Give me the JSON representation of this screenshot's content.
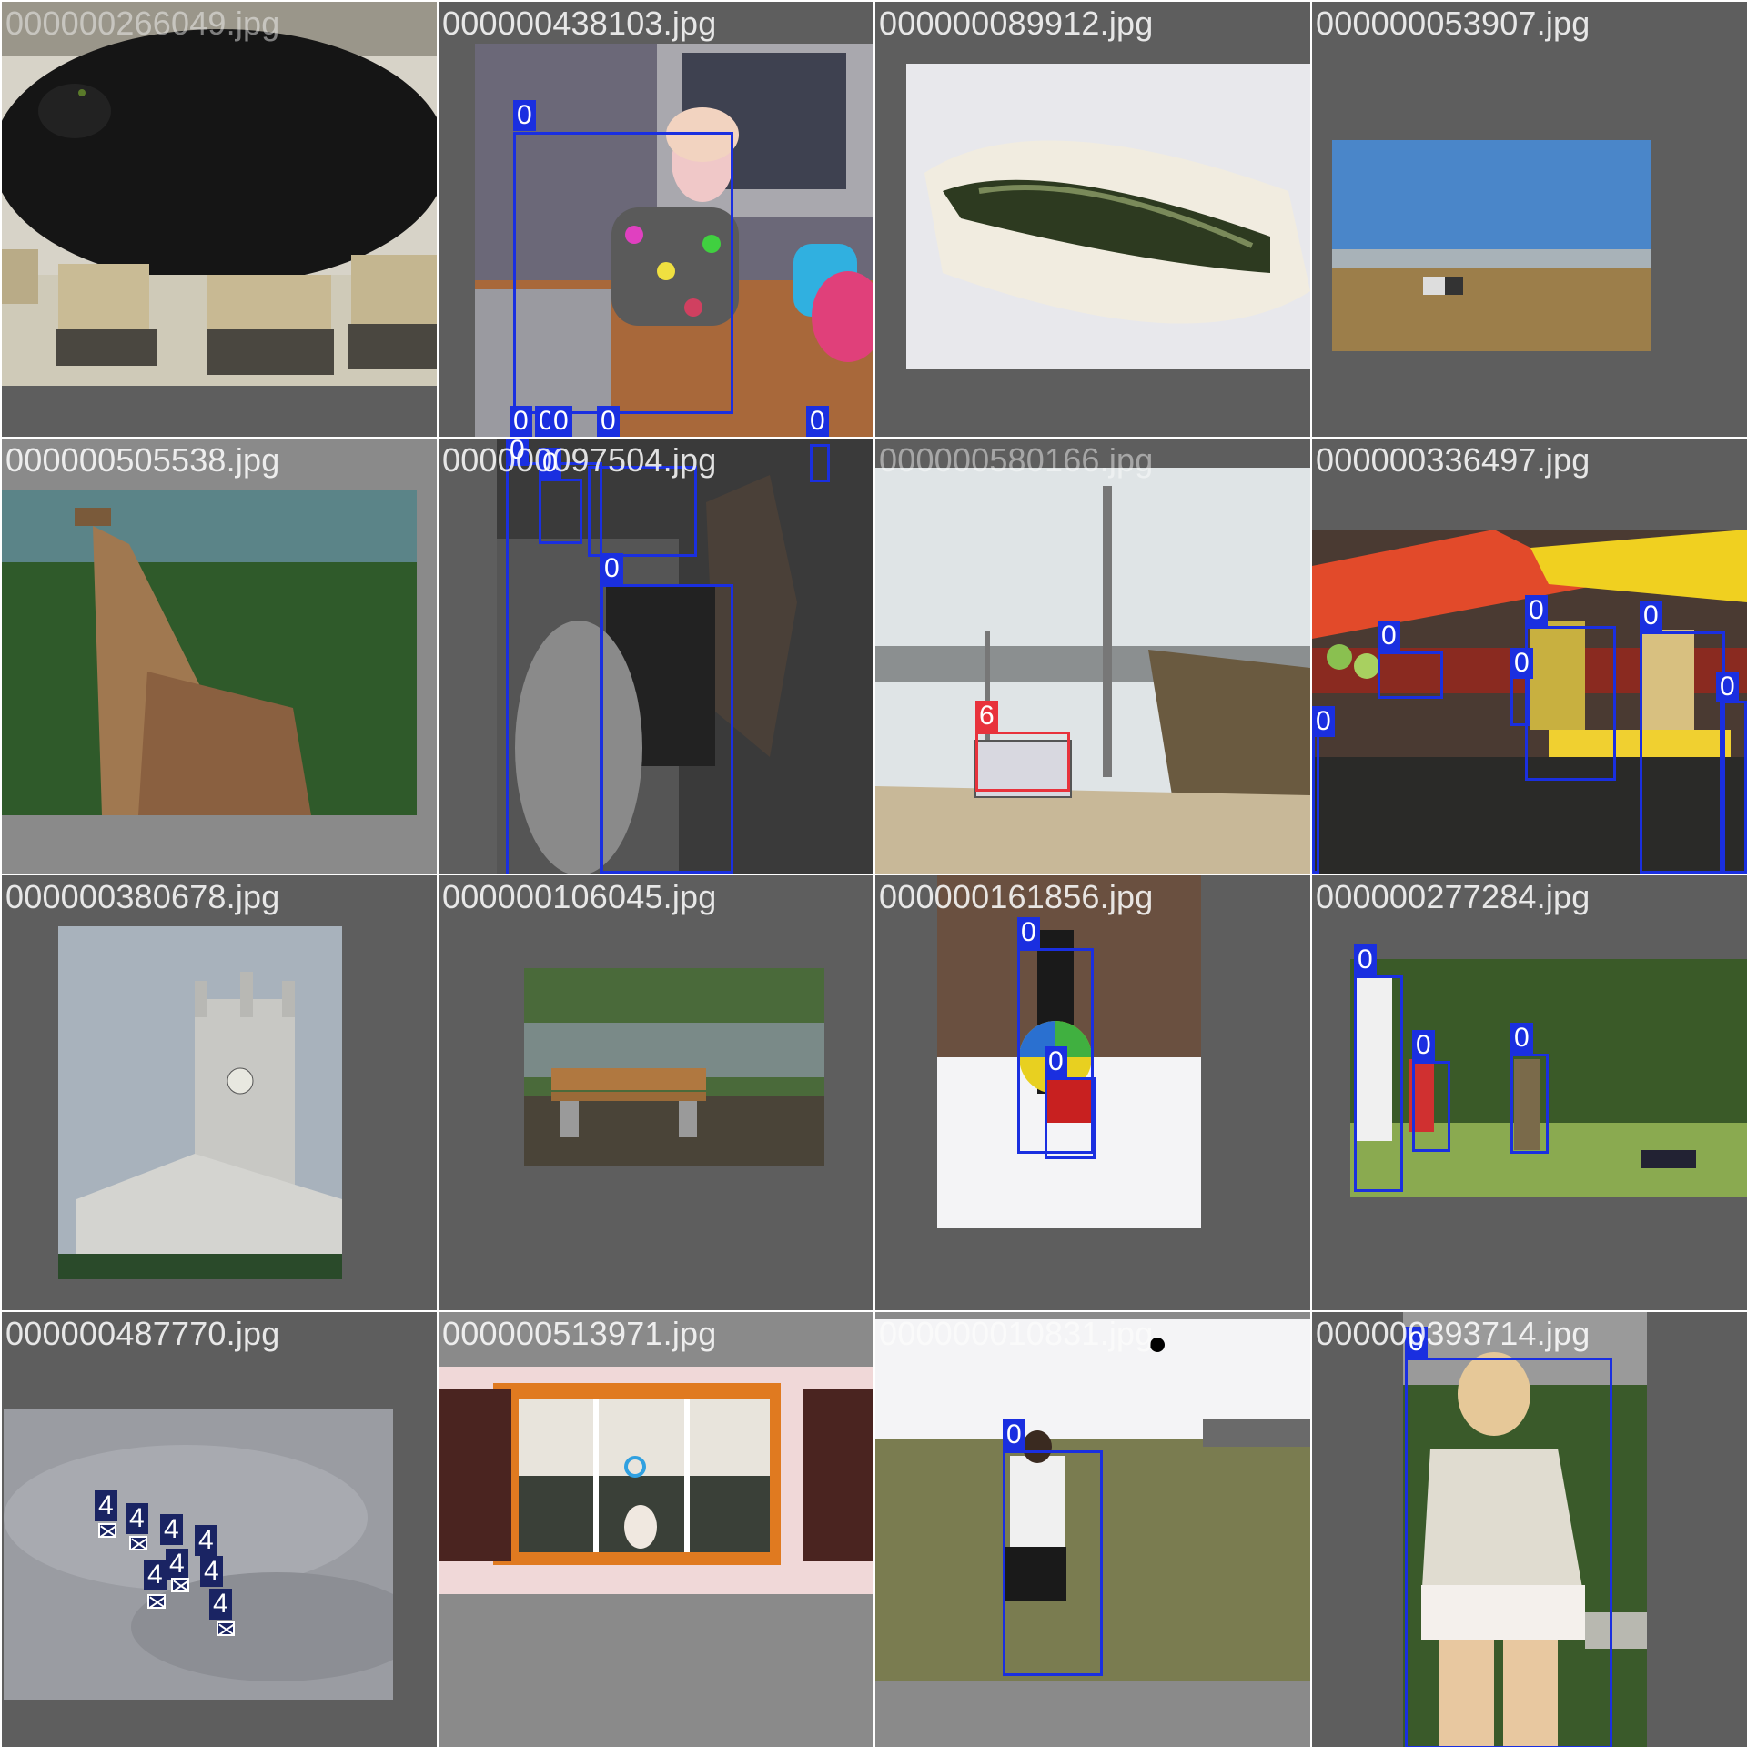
{
  "colors": {
    "tile_bg": "#5e5e5e",
    "tile_bg_light": "#8a8a8a",
    "box": "#1a2fe0",
    "box_red": "#e8323c",
    "label_navy": "#1a2463"
  },
  "tiles": [
    {
      "filename": "000000266049.jpg",
      "labels": []
    },
    {
      "filename": "000000438103.jpg",
      "labels": [
        "0",
        "0",
        "0",
        "0",
        "0",
        "0"
      ]
    },
    {
      "filename": "000000089912.jpg",
      "labels": []
    },
    {
      "filename": "000000053907.jpg",
      "labels": []
    },
    {
      "filename": "000000505538.jpg",
      "labels": []
    },
    {
      "filename": "000000097504.jpg",
      "labels": [
        "0",
        "0",
        "0"
      ]
    },
    {
      "filename": "000000580166.jpg",
      "labels": [
        "6"
      ]
    },
    {
      "filename": "000000336497.jpg",
      "labels": [
        "0",
        "0",
        "0",
        "0",
        "0",
        "0"
      ]
    },
    {
      "filename": "000000380678.jpg",
      "labels": []
    },
    {
      "filename": "000000106045.jpg",
      "labels": []
    },
    {
      "filename": "000000161856.jpg",
      "labels": [
        "0",
        "0"
      ]
    },
    {
      "filename": "000000277284.jpg",
      "labels": [
        "0",
        "0",
        "0"
      ]
    },
    {
      "filename": "000000487770.jpg",
      "labels": [
        "4",
        "4",
        "4",
        "4",
        "4",
        "4",
        "4",
        "4"
      ]
    },
    {
      "filename": "000000513971.jpg",
      "labels": []
    },
    {
      "filename": "000000010831.jpg",
      "labels": [
        "0"
      ]
    },
    {
      "filename": "000000393714.jpg",
      "labels": [
        "0"
      ]
    }
  ]
}
